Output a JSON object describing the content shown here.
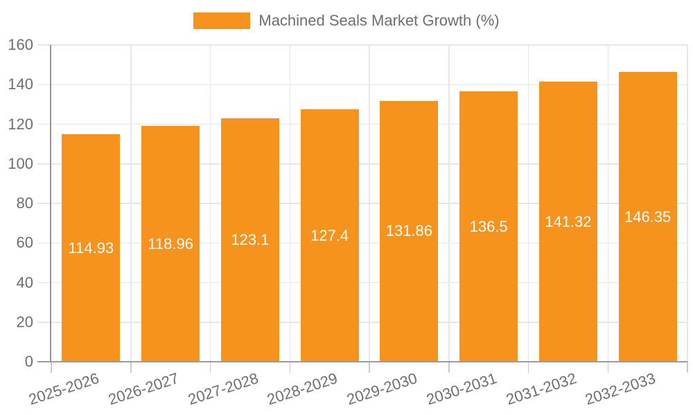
{
  "legend": {
    "label": "Machined Seals Market Growth (%)"
  },
  "chart_data": {
    "type": "bar",
    "title": "Machined Seals Market Growth (%)",
    "series_name": "Machined Seals Market Growth (%)",
    "categories": [
      "2025-2026",
      "2026-2027",
      "2027-2028",
      "2028-2029",
      "2029-2030",
      "2030-2031",
      "2031-2032",
      "2032-2033"
    ],
    "values": [
      114.93,
      118.96,
      123.1,
      127.4,
      131.86,
      136.5,
      141.32,
      146.35
    ],
    "xlabel": "",
    "ylabel": "",
    "ylim": [
      0,
      160
    ],
    "ytick_step": 20,
    "yticks": [
      0,
      20,
      40,
      60,
      80,
      100,
      120,
      140,
      160
    ],
    "grid": true,
    "legend_position": "top-center",
    "x_label_rotation_deg": -18,
    "colors": {
      "bar": "#f6921e",
      "value_label": "#ffffff",
      "axis_text": "#6e6e6e",
      "gridline": "#e6e6e6",
      "tick": "#c9c9c9"
    }
  }
}
